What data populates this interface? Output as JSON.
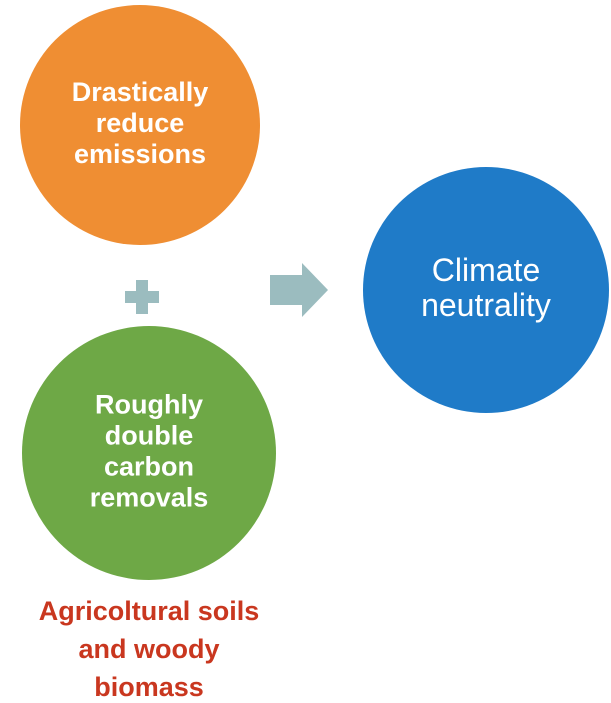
{
  "nodes": [
    {
      "label": [
        "Drastically",
        "reduce",
        "emissions"
      ]
    },
    {
      "label": [
        "Roughly",
        "double",
        "carbon",
        "removals"
      ]
    },
    {
      "label": [
        "Climate",
        "neutrality"
      ]
    }
  ],
  "note": [
    "Agricoltural soils",
    "and woody",
    "biomass"
  ]
}
